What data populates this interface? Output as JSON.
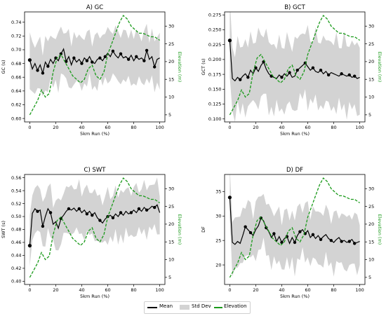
{
  "legend": {
    "mean_label": "Mean",
    "std_label": "Std Dev",
    "elev_label": "Elevation"
  },
  "colors": {
    "mean": "#000000",
    "std": "#d3d3d3",
    "elevation": "#1a9a1a"
  },
  "elevation_profile": {
    "x": [
      0,
      3,
      6,
      9,
      12,
      15,
      18,
      21,
      24,
      27,
      30,
      33,
      36,
      39,
      42,
      45,
      48,
      51,
      54,
      57,
      60,
      63,
      66,
      69,
      72,
      75,
      78,
      81,
      84,
      87,
      90,
      93,
      96,
      100
    ],
    "elev": [
      5,
      7,
      9,
      12,
      10,
      11,
      17,
      21,
      22,
      20,
      18,
      16,
      15,
      14,
      15,
      18,
      19,
      16,
      15,
      17,
      22,
      25,
      28,
      31,
      33,
      32,
      30,
      29,
      28,
      28,
      27.5,
      27,
      27,
      26
    ]
  },
  "chart_data": [
    {
      "type": "line",
      "title": "A) GC",
      "xlabel": "5km Run (%)",
      "ylabel": "GC (s)",
      "y2label": "Elevation (m)",
      "xlim": [
        -4,
        104
      ],
      "ylim": [
        0.595,
        0.755
      ],
      "y2lim": [
        3,
        34
      ],
      "xticks": [
        0,
        20,
        40,
        60,
        80,
        100
      ],
      "yticks": [
        0.6,
        0.62,
        0.64,
        0.66,
        0.68,
        0.7,
        0.72,
        0.74
      ],
      "ytick_labels": [
        "0.60",
        "0.62",
        "0.64",
        "0.66",
        "0.68",
        "0.70",
        "0.72",
        "0.74"
      ],
      "y2ticks": [
        5,
        10,
        15,
        20,
        25,
        30
      ],
      "mean": {
        "x": [
          0,
          2,
          4,
          6,
          8,
          10,
          12,
          14,
          16,
          18,
          20,
          22,
          24,
          26,
          28,
          30,
          32,
          34,
          36,
          38,
          40,
          42,
          44,
          46,
          48,
          50,
          52,
          54,
          56,
          58,
          60,
          62,
          64,
          66,
          68,
          70,
          72,
          74,
          76,
          78,
          80,
          82,
          84,
          86,
          88,
          90,
          92,
          94,
          96,
          98,
          100
        ],
        "y": [
          0.685,
          0.672,
          0.68,
          0.67,
          0.678,
          0.666,
          0.682,
          0.676,
          0.686,
          0.68,
          0.688,
          0.684,
          0.694,
          0.701,
          0.683,
          0.69,
          0.678,
          0.688,
          0.682,
          0.686,
          0.68,
          0.688,
          0.684,
          0.69,
          0.682,
          0.68,
          0.686,
          0.688,
          0.684,
          0.69,
          0.695,
          0.69,
          0.698,
          0.692,
          0.688,
          0.694,
          0.688,
          0.69,
          0.686,
          0.692,
          0.684,
          0.69,
          0.686,
          0.688,
          0.684,
          0.699,
          0.686,
          0.69,
          0.675,
          0.686,
          0.688
        ]
      },
      "std_half_width": 0.035,
      "markers_x": [
        0,
        6,
        10,
        14,
        20,
        24,
        28,
        34,
        40,
        44,
        48,
        54,
        58,
        64,
        70,
        76,
        82,
        88,
        90,
        96
      ]
    },
    {
      "type": "line",
      "title": "B) GCT",
      "xlabel": "5km Run (%)",
      "ylabel": "GCT (s)",
      "y2label": "Elevation (m)",
      "xlim": [
        -4,
        104
      ],
      "ylim": [
        0.095,
        0.28
      ],
      "y2lim": [
        3,
        34
      ],
      "xticks": [
        0,
        20,
        40,
        60,
        80,
        100
      ],
      "yticks": [
        0.1,
        0.125,
        0.15,
        0.175,
        0.2,
        0.225,
        0.25,
        0.275
      ],
      "ytick_labels": [
        "0.100",
        "0.125",
        "0.150",
        "0.175",
        "0.200",
        "0.225",
        "0.250",
        "0.275"
      ],
      "y2ticks": [
        5,
        10,
        15,
        20,
        25,
        30
      ],
      "mean": {
        "x": [
          0,
          2,
          4,
          6,
          8,
          10,
          12,
          14,
          16,
          18,
          20,
          22,
          24,
          26,
          28,
          30,
          32,
          34,
          36,
          38,
          40,
          42,
          44,
          46,
          48,
          50,
          52,
          54,
          56,
          58,
          60,
          62,
          64,
          66,
          68,
          70,
          72,
          74,
          76,
          78,
          80,
          82,
          84,
          86,
          88,
          90,
          92,
          94,
          96,
          98,
          100
        ],
        "y": [
          0.232,
          0.168,
          0.164,
          0.17,
          0.166,
          0.172,
          0.176,
          0.17,
          0.182,
          0.176,
          0.186,
          0.18,
          0.19,
          0.196,
          0.184,
          0.176,
          0.172,
          0.17,
          0.168,
          0.174,
          0.17,
          0.176,
          0.172,
          0.178,
          0.17,
          0.172,
          0.182,
          0.186,
          0.19,
          0.194,
          0.188,
          0.182,
          0.186,
          0.18,
          0.178,
          0.182,
          0.176,
          0.18,
          0.174,
          0.178,
          0.176,
          0.174,
          0.172,
          0.176,
          0.174,
          0.172,
          0.174,
          0.17,
          0.172,
          0.168,
          0.17
        ]
      },
      "std_half_width": 0.055,
      "markers_x": [
        0,
        8,
        14,
        20,
        26,
        32,
        40,
        46,
        52,
        58,
        64,
        70,
        76,
        86,
        92,
        96
      ]
    },
    {
      "type": "line",
      "title": "C) SWT",
      "xlabel": "5km Run (%)",
      "ylabel": "SWT (s)",
      "y2label": "Elevation (m)",
      "xlim": [
        -4,
        104
      ],
      "ylim": [
        0.395,
        0.565
      ],
      "y2lim": [
        3,
        34
      ],
      "xticks": [
        0,
        20,
        40,
        60,
        80,
        100
      ],
      "yticks": [
        0.4,
        0.42,
        0.44,
        0.46,
        0.48,
        0.5,
        0.52,
        0.54,
        0.56
      ],
      "ytick_labels": [
        "0.40",
        "0.42",
        "0.44",
        "0.46",
        "0.48",
        "0.50",
        "0.52",
        "0.54",
        "0.56"
      ],
      "y2ticks": [
        5,
        10,
        15,
        20,
        25,
        30
      ],
      "mean": {
        "x": [
          0,
          2,
          4,
          6,
          8,
          10,
          12,
          14,
          16,
          18,
          20,
          22,
          24,
          26,
          28,
          30,
          32,
          34,
          36,
          38,
          40,
          42,
          44,
          46,
          48,
          50,
          52,
          54,
          56,
          58,
          60,
          62,
          64,
          66,
          68,
          70,
          72,
          74,
          76,
          78,
          80,
          82,
          84,
          86,
          88,
          90,
          92,
          94,
          96,
          98,
          100
        ],
        "y": [
          0.455,
          0.505,
          0.512,
          0.508,
          0.51,
          0.485,
          0.5,
          0.512,
          0.506,
          0.488,
          0.492,
          0.482,
          0.497,
          0.502,
          0.508,
          0.512,
          0.51,
          0.513,
          0.508,
          0.512,
          0.506,
          0.51,
          0.504,
          0.508,
          0.502,
          0.506,
          0.498,
          0.494,
          0.49,
          0.496,
          0.5,
          0.502,
          0.498,
          0.504,
          0.5,
          0.506,
          0.502,
          0.508,
          0.504,
          0.506,
          0.51,
          0.506,
          0.512,
          0.508,
          0.514,
          0.51,
          0.512,
          0.516,
          0.514,
          0.518,
          0.506
        ]
      },
      "std_half_width": 0.035,
      "markers_x": [
        0,
        6,
        10,
        16,
        24,
        30,
        38,
        44,
        48,
        54,
        60,
        64,
        70,
        78,
        84,
        90,
        96
      ]
    },
    {
      "type": "line",
      "title": "D) DF",
      "xlabel": "5km Run (%)",
      "ylabel": "DF",
      "y2label": "Elevation (m)",
      "xlim": [
        -4,
        104
      ],
      "ylim": [
        16,
        38.5
      ],
      "y2lim": [
        3,
        34
      ],
      "xticks": [
        0,
        20,
        40,
        60,
        80,
        100
      ],
      "yticks": [
        20,
        25,
        30,
        35
      ],
      "ytick_labels": [
        "20",
        "25",
        "30",
        "35"
      ],
      "y2ticks": [
        5,
        10,
        15,
        20,
        25,
        30
      ],
      "mean": {
        "x": [
          0,
          2,
          4,
          6,
          8,
          10,
          12,
          14,
          16,
          18,
          20,
          22,
          24,
          26,
          28,
          30,
          32,
          34,
          36,
          38,
          40,
          42,
          44,
          46,
          48,
          50,
          52,
          54,
          56,
          58,
          60,
          62,
          64,
          66,
          68,
          70,
          72,
          74,
          76,
          78,
          80,
          82,
          84,
          86,
          88,
          90,
          92,
          94,
          96,
          98,
          100
        ],
        "y": [
          33.8,
          24.6,
          24.2,
          24.8,
          24.4,
          26.0,
          27.8,
          27.2,
          26.6,
          26.0,
          27.2,
          28.0,
          29.6,
          29.0,
          27.6,
          26.8,
          25.6,
          26.4,
          24.8,
          25.8,
          24.6,
          25.4,
          25.8,
          24.4,
          25.6,
          24.6,
          26.0,
          26.8,
          27.2,
          26.4,
          27.0,
          25.6,
          26.2,
          25.4,
          26.0,
          25.2,
          25.8,
          26.2,
          25.4,
          25.0,
          24.6,
          25.2,
          25.6,
          24.8,
          25.0,
          24.6,
          24.8,
          25.2,
          24.4,
          24.6,
          24.8
        ]
      },
      "std_half_width": 5.2,
      "markers_x": [
        0,
        12,
        16,
        24,
        28,
        34,
        40,
        44,
        50,
        54,
        58,
        64,
        70,
        78,
        86,
        92,
        96
      ]
    }
  ]
}
